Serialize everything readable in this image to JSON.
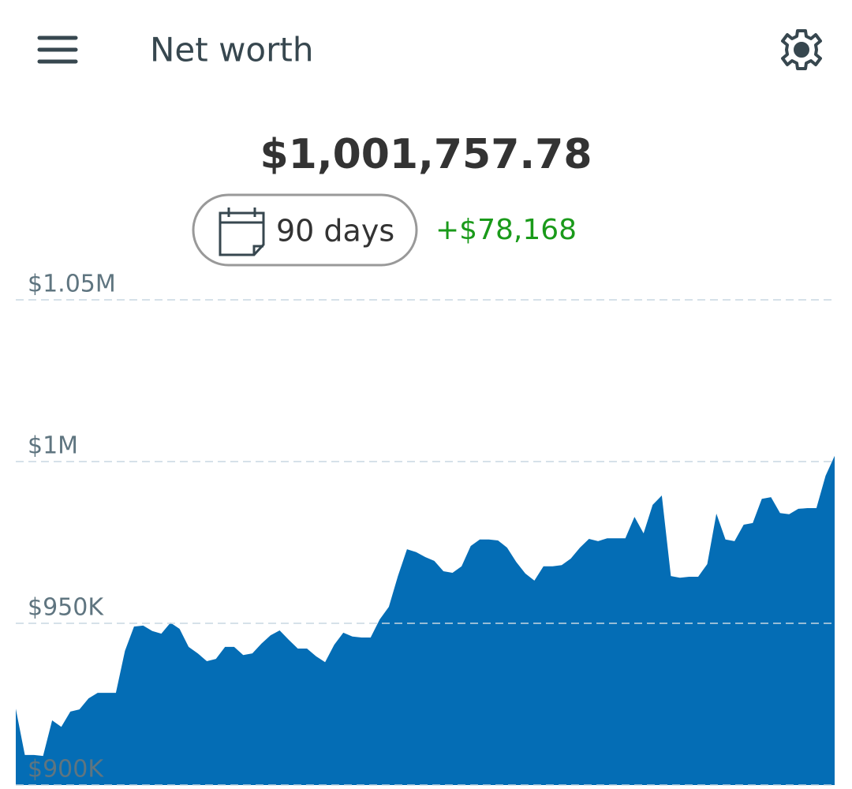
{
  "header": {
    "title": "Net worth"
  },
  "summary": {
    "total": "$1,001,757.78",
    "period": "90 days",
    "change": "+$78,168"
  },
  "chart_data": {
    "type": "area",
    "values": [
      923590,
      909300,
      909300,
      909000,
      920000,
      918000,
      922700,
      923400,
      926800,
      928500,
      928500,
      928500,
      941500,
      949000,
      949300,
      947600,
      946800,
      950200,
      948300,
      942700,
      940700,
      938300,
      939000,
      942700,
      942700,
      940200,
      940700,
      943700,
      946300,
      947800,
      944900,
      942200,
      942200,
      939800,
      938000,
      943400,
      947100,
      945900,
      945600,
      945600,
      951200,
      955100,
      964600,
      972900,
      972000,
      970500,
      969300,
      966100,
      965600,
      967600,
      973900,
      975900,
      975900,
      975600,
      973400,
      969000,
      965400,
      963200,
      967600,
      967600,
      968000,
      970000,
      973400,
      976100,
      975400,
      976300,
      976300,
      976300,
      982900,
      977800,
      986600,
      989500,
      964600,
      964100,
      964400,
      964400,
      968300,
      983900,
      975900,
      975400,
      980500,
      981000,
      988500,
      989000,
      984100,
      983700,
      985400,
      985600,
      985600,
      995600,
      1001757.78
    ],
    "color": "#046db5",
    "ylim": [
      900000,
      1050000
    ],
    "yticks": [
      {
        "value": 900000,
        "label": "$900K"
      },
      {
        "value": 950000,
        "label": "$950K"
      },
      {
        "value": 1000000,
        "label": "$1M"
      },
      {
        "value": 1050000,
        "label": "$1.05M"
      }
    ],
    "grid": true
  }
}
